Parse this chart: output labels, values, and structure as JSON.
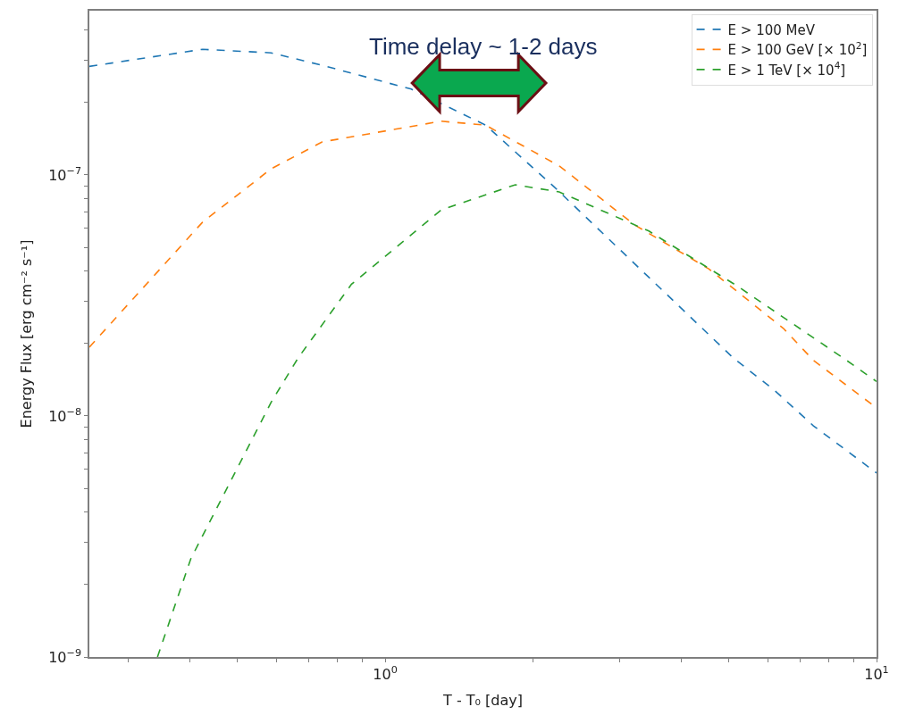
{
  "chart_data": {
    "type": "line",
    "xlabel": "T - T₀ [day]",
    "ylabel": "Energy Flux [erg cm⁻² s⁻¹]",
    "annotations": [
      "Time delay ~ 1-2 days"
    ],
    "series": [
      {
        "name": "E > 100 MeV",
        "color": "#1f77b4",
        "x": [
          0.25,
          0.425,
          0.586,
          0.744,
          1.13,
          1.6,
          2.21,
          3.44,
          5.11,
          6.19,
          7.44,
          10
        ],
        "values": [
          2.82e-07,
          3.32e-07,
          3.21e-07,
          2.85e-07,
          2.27e-07,
          1.61e-07,
          8.9e-08,
          3.76e-08,
          1.74e-08,
          1.28e-08,
          9.1e-09,
          5.8e-09
        ]
      },
      {
        "name": "E > 100 GeV [× 10$^{2}$]",
        "color": "#ff7f0e",
        "x": [
          0.25,
          0.425,
          0.586,
          0.744,
          1.3,
          1.6,
          2.26,
          3.22,
          4.56,
          6.46,
          7.44,
          10
        ],
        "values": [
          1.93e-08,
          6.37e-08,
          1.06e-07,
          1.37e-07,
          1.67e-07,
          1.61e-07,
          1.09e-07,
          6.2e-08,
          4.07e-08,
          2.31e-08,
          1.7e-08,
          1.08e-08
        ]
      },
      {
        "name": "E > 1 TeV [× 10$^{4}$]",
        "color": "#2ca02c",
        "x": [
          0.344,
          0.402,
          0.586,
          0.665,
          0.854,
          1.3,
          1.84,
          2.26,
          3.44,
          5.24,
          8.55,
          10
        ],
        "values": [
          1e-09,
          2.55e-09,
          1.14e-08,
          1.74e-08,
          3.52e-08,
          7.16e-08,
          9.1e-08,
          8.5e-08,
          5.85e-08,
          3.43e-08,
          1.74e-08,
          1.39e-08
        ]
      }
    ],
    "log": "xy",
    "xlim": [
      0.25,
      10
    ],
    "ylim": [
      1e-09,
      4.8e-07
    ],
    "xticks": [
      {
        "value": 0.3,
        "label": null
      },
      {
        "value": 0.4,
        "label": null
      },
      {
        "value": 0.5,
        "label": null
      },
      {
        "value": 0.6,
        "label": null
      },
      {
        "value": 0.7,
        "label": null
      },
      {
        "value": 0.8,
        "label": null
      },
      {
        "value": 0.9,
        "label": null
      },
      {
        "value": 1,
        "label": "10$^{0}$"
      },
      {
        "value": 2,
        "label": null
      },
      {
        "value": 3,
        "label": null
      },
      {
        "value": 4,
        "label": null
      },
      {
        "value": 5,
        "label": null
      },
      {
        "value": 6,
        "label": null
      },
      {
        "value": 7,
        "label": null
      },
      {
        "value": 8,
        "label": null
      },
      {
        "value": 9,
        "label": null
      },
      {
        "value": 10,
        "label": "10$^{1}$"
      }
    ],
    "yticks": [
      {
        "value": 1e-09,
        "label": "10$^{−9}$"
      },
      {
        "value": 2e-09,
        "label": null
      },
      {
        "value": 3e-09,
        "label": null
      },
      {
        "value": 4e-09,
        "label": null
      },
      {
        "value": 5e-09,
        "label": null
      },
      {
        "value": 6e-09,
        "label": null
      },
      {
        "value": 7e-09,
        "label": null
      },
      {
        "value": 8e-09,
        "label": null
      },
      {
        "value": 9e-09,
        "label": null
      },
      {
        "value": 1e-08,
        "label": "10$^{−8}$"
      },
      {
        "value": 2e-08,
        "label": null
      },
      {
        "value": 3e-08,
        "label": null
      },
      {
        "value": 4e-08,
        "label": null
      },
      {
        "value": 5e-08,
        "label": null
      },
      {
        "value": 6e-08,
        "label": null
      },
      {
        "value": 7e-08,
        "label": null
      },
      {
        "value": 8e-08,
        "label": null
      },
      {
        "value": 9e-08,
        "label": null
      },
      {
        "value": 1e-07,
        "label": "10$^{−7}$"
      },
      {
        "value": 2e-07,
        "label": null
      },
      {
        "value": 3e-07,
        "label": null
      },
      {
        "value": 4e-07,
        "label": null
      }
    ],
    "grid": false,
    "legend": "top right",
    "marker": "none",
    "line_style": "dashed"
  }
}
